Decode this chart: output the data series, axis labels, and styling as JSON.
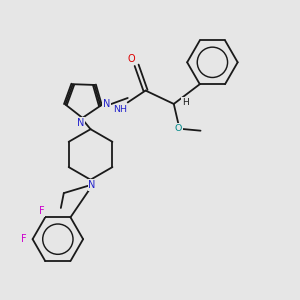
{
  "background_color": "#e6e6e6",
  "bond_color": "#1a1a1a",
  "atom_colors": {
    "N": "#2222cc",
    "O": "#dd0000",
    "F": "#cc00cc",
    "methoxy_O": "#008888"
  },
  "lw": 1.3
}
